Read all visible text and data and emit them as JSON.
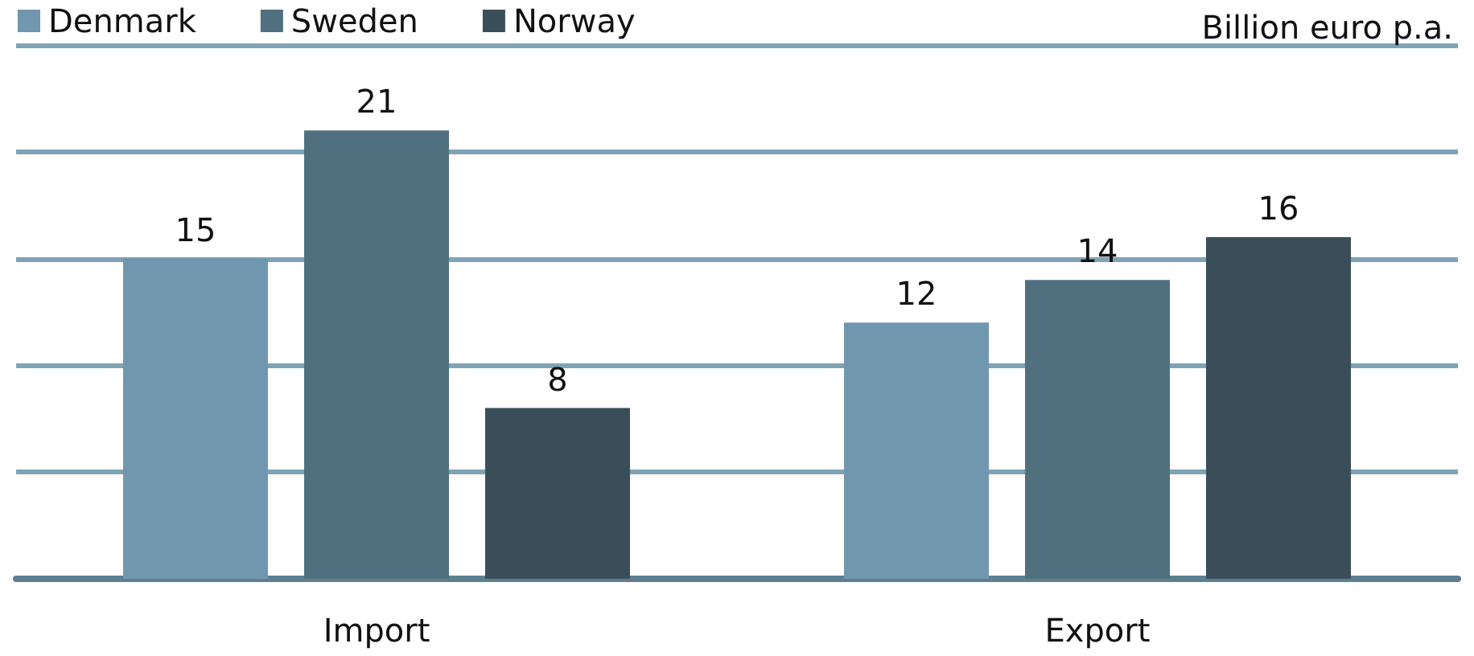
{
  "chart_data": {
    "type": "bar",
    "ylabel": "Billion euro p.a.",
    "categories": [
      "Import",
      "Export"
    ],
    "series": [
      {
        "name": "Denmark",
        "color": "#7097ad",
        "values": [
          15,
          12
        ]
      },
      {
        "name": "Sweden",
        "color": "#51707f",
        "values": [
          21,
          14
        ]
      },
      {
        "name": "Norway",
        "color": "#3a4e59",
        "values": [
          8,
          16
        ]
      }
    ],
    "ylim": [
      0,
      25
    ],
    "yticks": [
      0,
      5,
      10,
      15,
      20,
      25
    ],
    "grid": "y",
    "legend": "top left",
    "tick_labels": "x",
    "data_labels": true
  }
}
